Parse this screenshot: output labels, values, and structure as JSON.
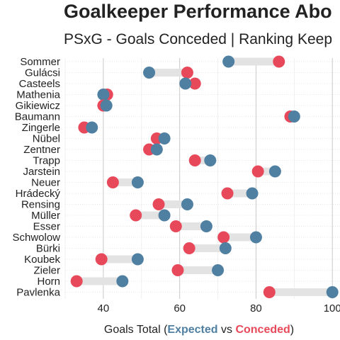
{
  "chart_data": {
    "type": "dumbbell",
    "title": "Goalkeeper Performance Abo",
    "subtitle": "PSxG - Goals Conceded | Ranking Keep",
    "xlabel": {
      "prefix": "Goals Total (",
      "expected": "Expected",
      "middle": " vs ",
      "conceded": "Conceded",
      "suffix": ")"
    },
    "xlim": [
      30,
      102
    ],
    "x_ticks": [
      40,
      60,
      80,
      100
    ],
    "x_tick_labels": [
      "40",
      "60",
      "80",
      "100"
    ],
    "grid": true,
    "colors": {
      "expected": "#4f7fa1",
      "conceded": "#e8495a",
      "segment": "#e3e3e3",
      "grid_major": "#c8c8c8",
      "grid_minor": "#ececec"
    },
    "categories": [
      "Sommer",
      "Gulácsi",
      "Casteels",
      "Mathenia",
      "Gikiewicz",
      "Baumann",
      "Zingerle",
      "Nübel",
      "Zentner",
      "Trapp",
      "Jarstein",
      "Neuer",
      "Hrádecký",
      "Rensing",
      "Müller",
      "Esser",
      "Schwolow",
      "Bürki",
      "Koubek",
      "Zieler",
      "Horn",
      "Pavlenka"
    ],
    "series": [
      {
        "name": "Expected",
        "values": [
          72.8,
          52.0,
          61.5,
          40.0,
          40.8,
          90.0,
          37.0,
          56.0,
          54.0,
          68.0,
          85.0,
          49.0,
          79.0,
          62.0,
          56.0,
          67.0,
          80.0,
          72.0,
          49.0,
          70.0,
          45.0,
          100.0
        ]
      },
      {
        "name": "Conceded",
        "values": [
          86.0,
          62.0,
          64.0,
          41.0,
          40.0,
          89.0,
          35.0,
          54.0,
          52.0,
          64.0,
          80.5,
          42.5,
          72.5,
          54.5,
          48.5,
          59.0,
          71.5,
          62.5,
          39.5,
          59.5,
          33.0,
          83.5
        ]
      }
    ]
  }
}
